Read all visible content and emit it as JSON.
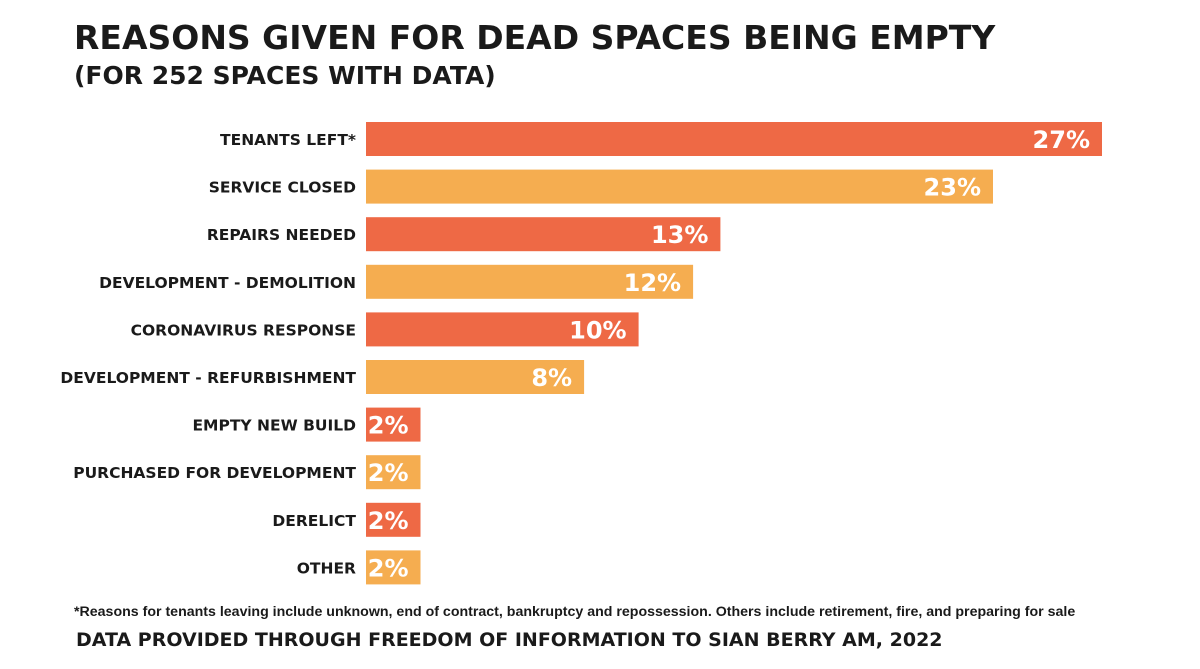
{
  "colors": {
    "odd": "#ee6945",
    "even": "#f5ad50",
    "text": "#1a1a1a",
    "value_text": "#ffffff"
  },
  "chart_data": {
    "type": "bar",
    "orientation": "horizontal",
    "title": "REASONS GIVEN FOR DEAD SPACES BEING EMPTY",
    "subtitle": "(FOR 252 SPACES WITH DATA)",
    "categories": [
      "TENANTS LEFT*",
      "SERVICE CLOSED",
      "REPAIRS NEEDED",
      "DEVELOPMENT - DEMOLITION",
      "CORONAVIRUS RESPONSE",
      "DEVELOPMENT - REFURBISHMENT",
      "EMPTY NEW BUILD",
      "PURCHASED FOR DEVELOPMENT",
      "DERELICT",
      "OTHER"
    ],
    "values": [
      27,
      23,
      13,
      12,
      10,
      8,
      2,
      2,
      2,
      2
    ],
    "value_labels": [
      "27%",
      "23%",
      "13%",
      "12%",
      "10%",
      "8%",
      "2%",
      "2%",
      "2%",
      "2%"
    ],
    "unit": "%",
    "xlim": [
      0,
      27
    ],
    "grid": false,
    "legend": "none",
    "xlabel": "",
    "ylabel": ""
  },
  "footnote": "*Reasons for tenants leaving include unknown, end of contract, bankruptcy and repossession. Others include retirement, fire, and preparing for sale",
  "source": "DATA PROVIDED THROUGH FREEDOM OF INFORMATION TO SIAN BERRY AM, 2022"
}
